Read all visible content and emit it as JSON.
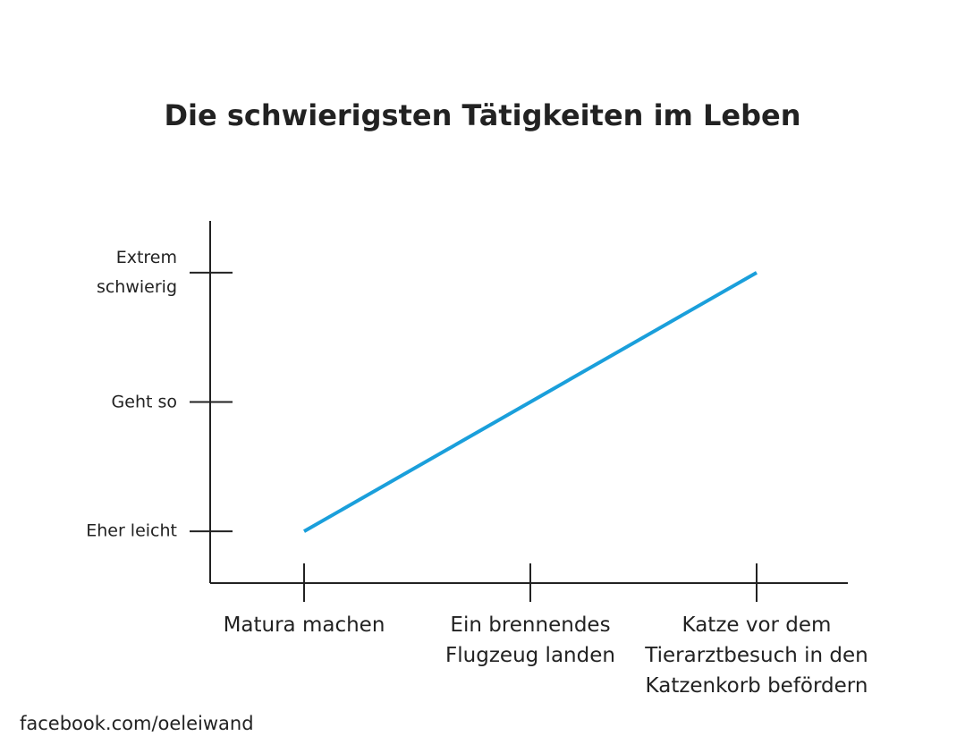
{
  "chart_data": {
    "type": "line",
    "title": "Die schwierigsten Tätigkeiten im Leben",
    "categories": [
      "Matura machen",
      "Ein brennendes Flugzeug landen",
      "Katze vor dem Tierarztbesuch in den Katzenkorb befördern"
    ],
    "series": [
      {
        "color": "#1a9fdb",
        "values": [
          1,
          2,
          3
        ]
      }
    ],
    "ylim": [
      0.6,
      3.4
    ],
    "yticks": [
      {
        "value": 1,
        "label": "Eher leicht"
      },
      {
        "value": 2,
        "label": "Geht so"
      },
      {
        "value": 3,
        "label": "Extrem schwierig"
      }
    ],
    "source": "facebook.com/oeleiwand"
  }
}
